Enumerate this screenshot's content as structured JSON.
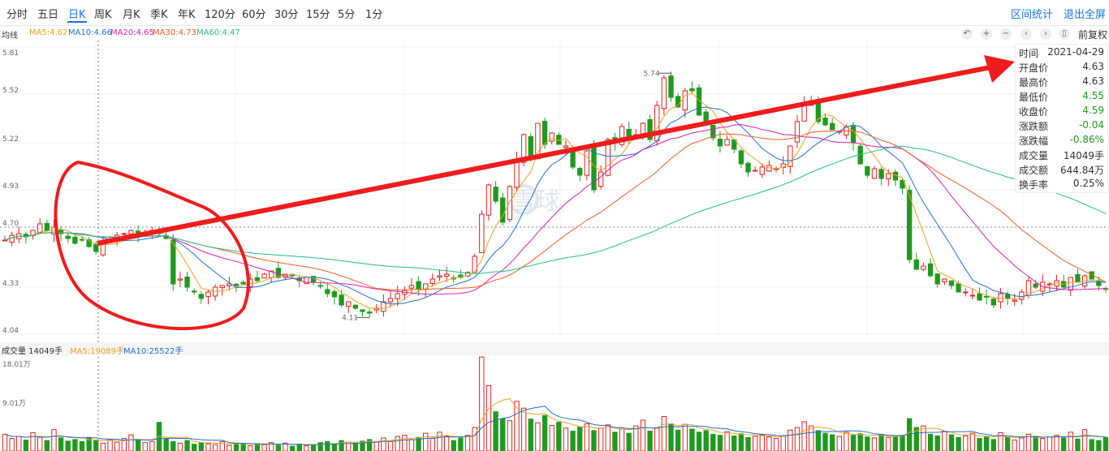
{
  "toolbar": {
    "periods": [
      "分时",
      "五日",
      "日K",
      "周K",
      "月K",
      "季K",
      "年K",
      "120分",
      "60分",
      "30分",
      "15分",
      "5分",
      "1分"
    ],
    "active_period": "日K",
    "range_stats": "区间统计",
    "exit_fullscreen": "退出全屏"
  },
  "legend": {
    "title": "均线",
    "items": [
      {
        "text": "MA5:4.62",
        "color": "#f0a020"
      },
      {
        "text": "MA10:4.66",
        "color": "#1e6fd0"
      },
      {
        "text": "MA20:4.65",
        "color": "#d81eb4"
      },
      {
        "text": "MA30:4.73",
        "color": "#f05a23"
      },
      {
        "text": "MA60:4.47",
        "color": "#20c080"
      }
    ]
  },
  "tools": {
    "icons": [
      "undo-icon",
      "zoom-in-icon",
      "zoom-out-icon",
      "prev-icon",
      "next-icon",
      "trash-icon"
    ],
    "adjust": "前复权"
  },
  "info": {
    "rows": [
      {
        "k": "时间",
        "v": "2021-04-29",
        "c": ""
      },
      {
        "k": "开盘价",
        "v": "4.63",
        "c": ""
      },
      {
        "k": "最高价",
        "v": "4.63",
        "c": ""
      },
      {
        "k": "最低价",
        "v": "4.55",
        "c": "green"
      },
      {
        "k": "收盘价",
        "v": "4.59",
        "c": "green"
      },
      {
        "k": "涨跌额",
        "v": "-0.04",
        "c": "green"
      },
      {
        "k": "涨跌幅",
        "v": "-0.86%",
        "c": "green"
      },
      {
        "k": "成交量",
        "v": "14049手",
        "c": ""
      },
      {
        "k": "成交额",
        "v": "644.84万",
        "c": ""
      },
      {
        "k": "换手率",
        "v": "0.25%",
        "c": ""
      }
    ]
  },
  "volume_header": {
    "label": "成交量 14049手",
    "ma5": "MA5:19089手",
    "ma10": "MA10:25522手",
    "ma5_color": "#f0a020",
    "ma10_color": "#1e6fd0"
  },
  "colors": {
    "up": "#e02020",
    "down": "#1f9a1f",
    "annotation": "#ee1c1c"
  },
  "watermark": "雪球",
  "chart_data": {
    "type": "candlestick",
    "price_axis": {
      "ticks": [
        5.81,
        5.52,
        5.22,
        4.93,
        4.7,
        4.33,
        4.04
      ],
      "labels": [
        "5.81",
        "5.52",
        "5.22",
        "4.93",
        "4.70",
        "4.33",
        "4.04"
      ],
      "ylim": [
        4.04,
        5.81
      ],
      "current": 4.7
    },
    "volume_axis": {
      "labels": [
        "18.01万",
        "9.01万"
      ],
      "max": 18.01,
      "unit": "万手"
    },
    "high_label": "5.74",
    "low_label": "4.11",
    "closes": [
      4.62,
      4.65,
      4.66,
      4.64,
      4.68,
      4.72,
      4.68,
      4.7,
      4.66,
      4.63,
      4.6,
      4.62,
      4.58,
      4.55,
      4.6,
      4.62,
      4.65,
      4.66,
      4.68,
      4.64,
      4.67,
      4.68,
      4.66,
      4.63,
      4.35,
      4.38,
      4.33,
      4.3,
      4.26,
      4.3,
      4.33,
      4.34,
      4.35,
      4.34,
      4.35,
      4.38,
      4.37,
      4.41,
      4.43,
      4.39,
      4.41,
      4.4,
      4.37,
      4.39,
      4.36,
      4.34,
      4.29,
      4.27,
      4.22,
      4.24,
      4.2,
      4.18,
      4.17,
      4.2,
      4.24,
      4.26,
      4.29,
      4.31,
      4.34,
      4.32,
      4.35,
      4.38,
      4.4,
      4.41,
      4.38,
      4.39,
      4.42,
      4.52,
      4.78,
      4.96,
      4.86,
      4.73,
      4.95,
      5.12,
      5.27,
      5.13,
      5.34,
      5.21,
      5.28,
      5.21,
      5.2,
      5.07,
      5.02,
      5.17,
      4.93,
      5.04,
      5.24,
      5.22,
      5.32,
      5.24,
      5.27,
      5.34,
      5.24,
      5.45,
      5.62,
      5.5,
      5.44,
      5.54,
      5.54,
      5.39,
      5.34,
      5.25,
      5.2,
      5.24,
      5.18,
      5.09,
      5.04,
      5.05,
      5.07,
      5.08,
      5.06,
      5.09,
      5.2,
      5.35,
      5.46,
      5.48,
      5.35,
      5.33,
      5.3,
      5.29,
      5.32,
      5.22,
      5.09,
      5.02,
      5.06,
      5.0,
      5.03,
      4.99,
      4.94,
      4.5,
      4.44,
      4.46,
      4.4,
      4.35,
      4.38,
      4.34,
      4.3,
      4.3,
      4.28,
      4.25,
      4.27,
      4.22,
      4.29,
      4.26,
      4.25,
      4.3,
      4.37,
      4.33,
      4.36,
      4.35,
      4.37,
      4.33,
      4.39,
      4.36,
      4.4,
      4.38,
      4.34,
      4.32
    ],
    "volumes_wan": [
      3.2,
      2.4,
      2.8,
      2.1,
      3.5,
      2.6,
      2.0,
      4.1,
      2.5,
      1.9,
      2.2,
      1.8,
      2.6,
      2.0,
      1.5,
      2.2,
      1.7,
      2.4,
      3.1,
      2.0,
      1.6,
      1.8,
      5.5,
      2.4,
      1.8,
      1.5,
      2.0,
      1.3,
      1.6,
      1.4,
      1.2,
      1.8,
      1.1,
      1.5,
      1.3,
      1.0,
      1.4,
      1.2,
      1.6,
      1.1,
      1.5,
      0.9,
      1.3,
      1.0,
      1.2,
      1.6,
      1.8,
      1.4,
      2.0,
      1.7,
      1.5,
      1.9,
      2.2,
      1.7,
      2.5,
      1.8,
      2.8,
      3.0,
      2.2,
      2.6,
      3.4,
      2.4,
      3.6,
      2.8,
      2.0,
      2.5,
      3.0,
      4.5,
      18.0,
      12.5,
      7.5,
      6.2,
      5.8,
      9.5,
      8.2,
      6.1,
      5.4,
      6.8,
      4.9,
      5.5,
      4.4,
      3.8,
      4.6,
      5.2,
      3.9,
      4.4,
      5.0,
      3.6,
      4.2,
      3.4,
      4.8,
      5.9,
      3.8,
      4.5,
      6.6,
      5.2,
      4.0,
      5.1,
      4.2,
      3.6,
      3.9,
      3.2,
      3.0,
      3.7,
      2.9,
      3.3,
      2.6,
      2.8,
      3.1,
      2.7,
      2.4,
      2.9,
      4.0,
      4.5,
      5.6,
      4.8,
      3.9,
      3.4,
      3.1,
      2.8,
      3.6,
      3.0,
      3.3,
      2.7,
      2.5,
      3.2,
      2.6,
      2.8,
      3.0,
      6.2,
      4.5,
      4.8,
      3.2,
      2.9,
      3.8,
      3.1,
      2.6,
      2.9,
      3.4,
      2.4,
      2.8,
      2.2,
      3.5,
      2.6,
      2.1,
      2.5,
      3.2,
      2.8,
      2.4,
      2.7,
      3.0,
      2.5,
      3.6,
      2.3,
      4.1,
      2.2,
      2.0,
      2.6
    ]
  }
}
